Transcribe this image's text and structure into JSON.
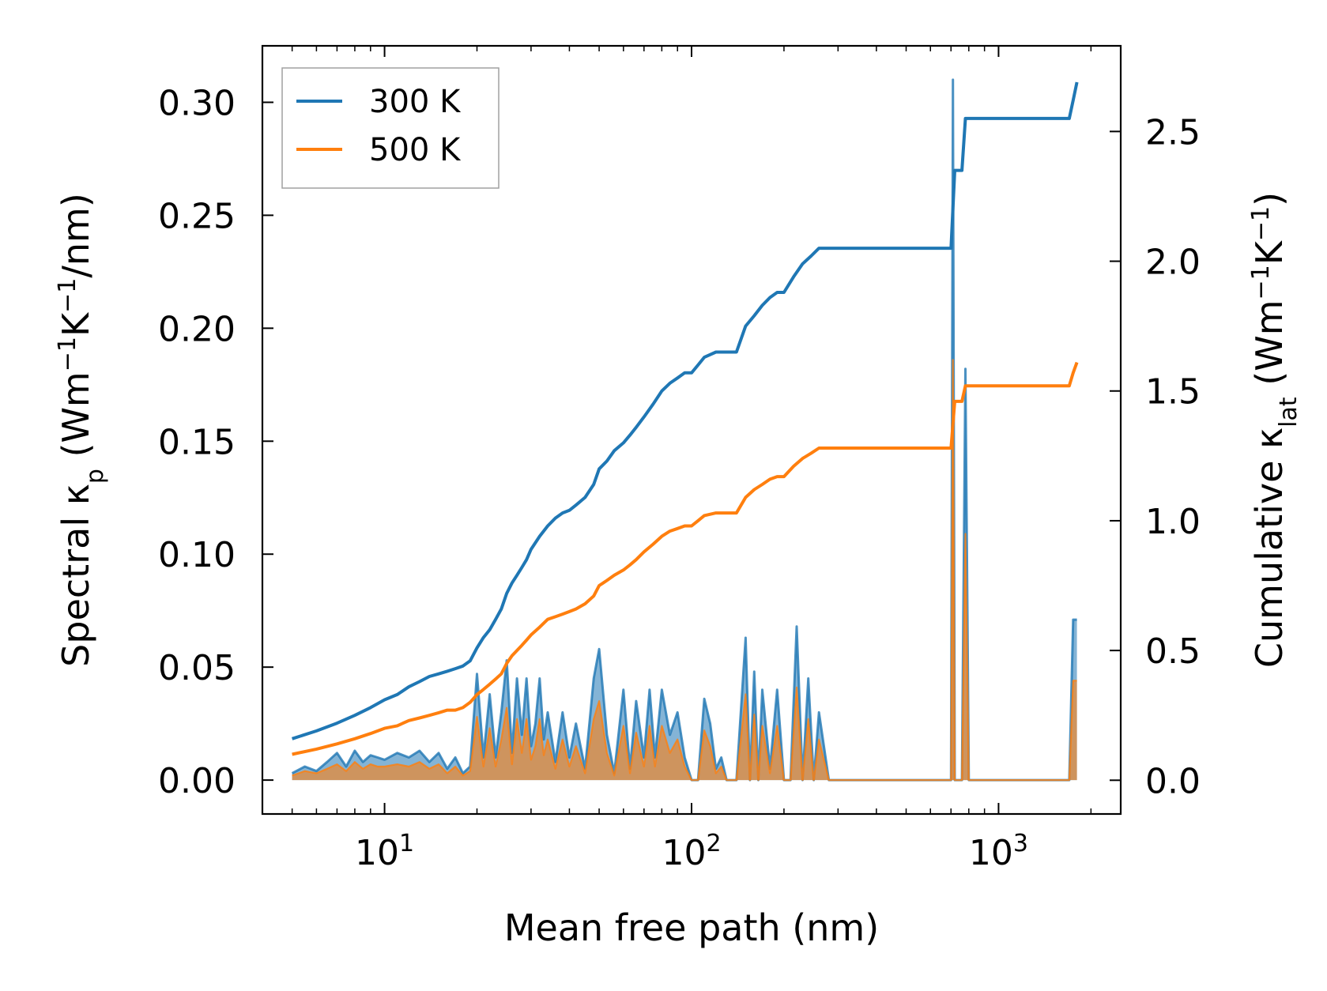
{
  "chart_data": {
    "type": "line",
    "xscale": "log",
    "xlabel": "Mean free path (nm)",
    "ylabel_left": {
      "main": "Spectral κ",
      "sub": "p",
      "unit_pre": " (Wm",
      "sup1": "−1",
      "mid": "K",
      "sup2": "−1",
      "tail": "/nm)"
    },
    "ylabel_right": {
      "main": "Cumulative κ",
      "sub": "lat",
      "unit_pre": " (Wm",
      "sup1": "−1",
      "mid": "K",
      "sup2": "−1",
      "tail": ")"
    },
    "xlim": [
      4.0,
      2500
    ],
    "ylim_left": [
      -0.015,
      0.325
    ],
    "ylim_right": [
      -0.13,
      2.83
    ],
    "x_ticks": [
      {
        "value": 10,
        "base": "10",
        "exp": "1"
      },
      {
        "value": 100,
        "base": "10",
        "exp": "2"
      },
      {
        "value": 1000,
        "base": "10",
        "exp": "3"
      }
    ],
    "yticks_left": [
      "0.00",
      "0.05",
      "0.10",
      "0.15",
      "0.20",
      "0.25",
      "0.30"
    ],
    "yticks_left_values": [
      0,
      0.05,
      0.1,
      0.15,
      0.2,
      0.25,
      0.3
    ],
    "yticks_right": [
      "0.0",
      "0.5",
      "1.0",
      "1.5",
      "2.0",
      "2.5"
    ],
    "yticks_right_values": [
      0,
      0.5,
      1.0,
      1.5,
      2.0,
      2.5
    ],
    "legend": {
      "position": "top-left",
      "entries": [
        "300 K",
        "500 K"
      ]
    },
    "colors": {
      "300K": "#1f77b4",
      "500K": "#ff7f0e"
    },
    "series": [
      {
        "name": "300 K",
        "axis": "right",
        "kind": "cumulative",
        "x": [
          5,
          6,
          7,
          8,
          9,
          10,
          11,
          12,
          13,
          14,
          15,
          16,
          17,
          18,
          19,
          20,
          21,
          22,
          23,
          24,
          25,
          26,
          27,
          28,
          29,
          30,
          32,
          34,
          36,
          38,
          40,
          42,
          45,
          48,
          50,
          53,
          56,
          60,
          63,
          66,
          70,
          75,
          80,
          85,
          90,
          95,
          100,
          105,
          110,
          120,
          130,
          140,
          150,
          160,
          170,
          180,
          190,
          200,
          215,
          230,
          245,
          260,
          280,
          700,
          720,
          740,
          760,
          780,
          800,
          1700,
          1750,
          1800
        ],
        "y": [
          0.16,
          0.19,
          0.22,
          0.25,
          0.28,
          0.31,
          0.33,
          0.36,
          0.38,
          0.4,
          0.41,
          0.42,
          0.43,
          0.44,
          0.46,
          0.51,
          0.55,
          0.58,
          0.62,
          0.66,
          0.72,
          0.76,
          0.79,
          0.82,
          0.85,
          0.89,
          0.94,
          0.98,
          1.01,
          1.03,
          1.04,
          1.06,
          1.09,
          1.14,
          1.2,
          1.23,
          1.27,
          1.3,
          1.33,
          1.36,
          1.4,
          1.45,
          1.5,
          1.53,
          1.55,
          1.57,
          1.57,
          1.6,
          1.63,
          1.65,
          1.65,
          1.65,
          1.75,
          1.79,
          1.83,
          1.86,
          1.88,
          1.88,
          1.94,
          1.99,
          2.02,
          2.05,
          2.05,
          2.05,
          2.35,
          2.35,
          2.35,
          2.55,
          2.55,
          2.55,
          2.62,
          2.69
        ]
      },
      {
        "name": "500 K",
        "axis": "right",
        "kind": "cumulative",
        "x": [
          5,
          6,
          7,
          8,
          9,
          10,
          11,
          12,
          13,
          14,
          15,
          16,
          17,
          18,
          19,
          20,
          21,
          22,
          23,
          24,
          25,
          26,
          27,
          28,
          29,
          30,
          32,
          34,
          36,
          38,
          40,
          42,
          45,
          48,
          50,
          53,
          56,
          60,
          63,
          66,
          70,
          75,
          80,
          85,
          90,
          95,
          100,
          105,
          110,
          120,
          130,
          140,
          150,
          160,
          170,
          180,
          190,
          200,
          215,
          230,
          245,
          260,
          280,
          700,
          720,
          740,
          760,
          780,
          800,
          1700,
          1750,
          1800
        ],
        "y": [
          0.1,
          0.12,
          0.14,
          0.16,
          0.18,
          0.2,
          0.21,
          0.23,
          0.24,
          0.25,
          0.26,
          0.27,
          0.27,
          0.28,
          0.3,
          0.33,
          0.35,
          0.37,
          0.39,
          0.41,
          0.45,
          0.48,
          0.5,
          0.52,
          0.54,
          0.56,
          0.59,
          0.62,
          0.63,
          0.64,
          0.65,
          0.66,
          0.68,
          0.71,
          0.75,
          0.77,
          0.79,
          0.81,
          0.83,
          0.85,
          0.88,
          0.91,
          0.94,
          0.96,
          0.97,
          0.98,
          0.98,
          1.0,
          1.02,
          1.03,
          1.03,
          1.03,
          1.09,
          1.12,
          1.14,
          1.16,
          1.17,
          1.17,
          1.21,
          1.24,
          1.26,
          1.28,
          1.28,
          1.28,
          1.46,
          1.46,
          1.46,
          1.52,
          1.52,
          1.52,
          1.57,
          1.61
        ]
      },
      {
        "name": "300 K spectral",
        "axis": "left",
        "kind": "spectral",
        "x": [
          5,
          5.5,
          6,
          6.5,
          7,
          7.5,
          8,
          8.5,
          9,
          9.5,
          10,
          11,
          12,
          13,
          14,
          15,
          16,
          17,
          18,
          19,
          20,
          21,
          22,
          23,
          24,
          25,
          26,
          27,
          28,
          29,
          30,
          31,
          32,
          33,
          34,
          36,
          38,
          40,
          42,
          45,
          48,
          50,
          53,
          56,
          60,
          63,
          66,
          70,
          73,
          76,
          80,
          85,
          90,
          95,
          100,
          105,
          110,
          115,
          120,
          125,
          130,
          135,
          140,
          150,
          155,
          160,
          165,
          170,
          180,
          190,
          200,
          210,
          220,
          230,
          240,
          250,
          260,
          280,
          300,
          690,
          700,
          710,
          720,
          730,
          760,
          780,
          800,
          820,
          850,
          1700,
          1750,
          1800
        ],
        "y": [
          0.003,
          0.006,
          0.004,
          0.008,
          0.012,
          0.006,
          0.013,
          0.008,
          0.011,
          0.01,
          0.009,
          0.012,
          0.01,
          0.013,
          0.008,
          0.012,
          0.005,
          0.01,
          0.003,
          0.006,
          0.047,
          0.01,
          0.038,
          0.01,
          0.03,
          0.053,
          0.012,
          0.045,
          0.02,
          0.045,
          0.015,
          0.025,
          0.045,
          0.018,
          0.03,
          0.008,
          0.03,
          0.01,
          0.025,
          0.005,
          0.045,
          0.058,
          0.02,
          0.003,
          0.04,
          0.005,
          0.035,
          0.01,
          0.04,
          0.01,
          0.04,
          0.02,
          0.03,
          0.01,
          0.0,
          0.0,
          0.036,
          0.025,
          0.005,
          0.01,
          0.0,
          0.0,
          0.0,
          0.063,
          0.0,
          0.048,
          0.0,
          0.04,
          0.005,
          0.04,
          0.0,
          0.0,
          0.068,
          0.0,
          0.045,
          0.0,
          0.03,
          0.0,
          0.0,
          0.0,
          0.0,
          0.31,
          0.0,
          0.0,
          0.0,
          0.182,
          0.0,
          0.0,
          0.0,
          0.0,
          0.071,
          0.071
        ]
      },
      {
        "name": "500 K spectral",
        "axis": "left",
        "kind": "spectral",
        "x": [
          5,
          5.5,
          6,
          6.5,
          7,
          7.5,
          8,
          8.5,
          9,
          9.5,
          10,
          11,
          12,
          13,
          14,
          15,
          16,
          17,
          18,
          19,
          20,
          21,
          22,
          23,
          24,
          25,
          26,
          27,
          28,
          29,
          30,
          31,
          32,
          33,
          34,
          36,
          38,
          40,
          42,
          45,
          48,
          50,
          53,
          56,
          60,
          63,
          66,
          70,
          73,
          76,
          80,
          85,
          90,
          95,
          100,
          105,
          110,
          115,
          120,
          125,
          130,
          135,
          140,
          150,
          155,
          160,
          165,
          170,
          180,
          190,
          200,
          210,
          220,
          230,
          240,
          250,
          260,
          280,
          300,
          690,
          700,
          710,
          720,
          730,
          760,
          780,
          800,
          820,
          850,
          1700,
          1750,
          1800
        ],
        "y": [
          0.002,
          0.004,
          0.003,
          0.005,
          0.007,
          0.004,
          0.008,
          0.005,
          0.007,
          0.006,
          0.006,
          0.007,
          0.006,
          0.008,
          0.005,
          0.007,
          0.003,
          0.006,
          0.002,
          0.004,
          0.028,
          0.006,
          0.023,
          0.006,
          0.018,
          0.032,
          0.007,
          0.027,
          0.012,
          0.027,
          0.009,
          0.015,
          0.027,
          0.011,
          0.018,
          0.005,
          0.018,
          0.006,
          0.015,
          0.003,
          0.027,
          0.035,
          0.012,
          0.002,
          0.024,
          0.003,
          0.021,
          0.006,
          0.024,
          0.006,
          0.024,
          0.012,
          0.018,
          0.006,
          0.0,
          0.0,
          0.022,
          0.015,
          0.003,
          0.006,
          0.0,
          0.0,
          0.0,
          0.038,
          0.0,
          0.029,
          0.0,
          0.024,
          0.003,
          0.024,
          0.0,
          0.0,
          0.041,
          0.0,
          0.027,
          0.0,
          0.018,
          0.0,
          0.0,
          0.0,
          0.0,
          0.186,
          0.0,
          0.0,
          0.0,
          0.109,
          0.0,
          0.0,
          0.0,
          0.0,
          0.044,
          0.044
        ]
      }
    ]
  }
}
